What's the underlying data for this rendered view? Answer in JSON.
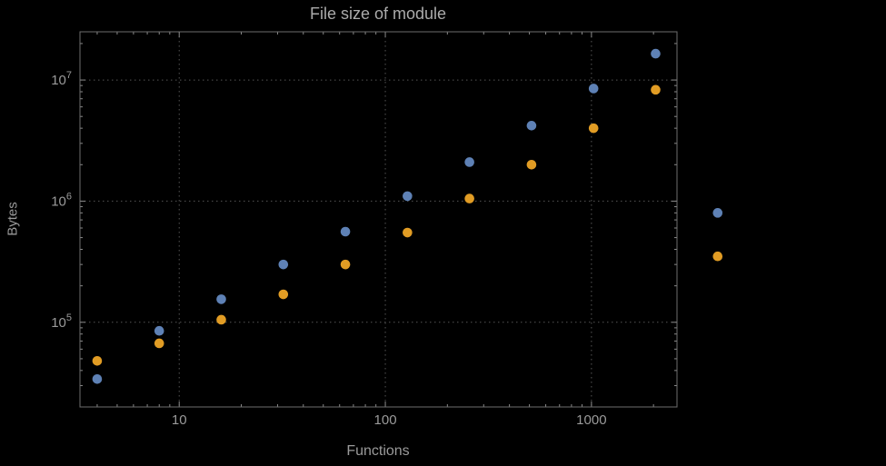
{
  "chart_data": {
    "type": "scatter",
    "title": "File size of module",
    "xlabel": "Functions",
    "ylabel": "Bytes",
    "x_scale": "log",
    "y_scale": "log",
    "xlim": [
      3.3,
      2600
    ],
    "ylim": [
      20000,
      25000000
    ],
    "grid": "major-dotted",
    "legend": "none",
    "x_major_ticks": [
      10,
      100,
      1000
    ],
    "x_tick_labels": [
      "10",
      "100",
      "1000"
    ],
    "y_major_ticks": [
      100000,
      1000000,
      10000000
    ],
    "y_tick_exponents": [
      "5",
      "6",
      "7"
    ],
    "x": [
      4,
      8,
      16,
      32,
      64,
      128,
      256,
      512,
      1024,
      2048,
      4096
    ],
    "series": [
      {
        "name": "series-blue",
        "color": "#5E81B5",
        "y": [
          34000,
          85000,
          155000,
          300000,
          560000,
          1100000,
          2100000,
          4200000,
          8500000,
          16500000,
          800000
        ]
      },
      {
        "name": "series-orange",
        "color": "#E19C24",
        "y": [
          48000,
          67000,
          105000,
          170000,
          300000,
          550000,
          1050000,
          2000000,
          4000000,
          8300000,
          350000
        ]
      }
    ]
  },
  "colors": {
    "background": "#000000",
    "frame": "#6e6e6e",
    "grid": "#555555",
    "text": "#9a9a9a",
    "title": "#ababab",
    "series_blue": "#5E81B5",
    "series_orange": "#E19C24"
  }
}
